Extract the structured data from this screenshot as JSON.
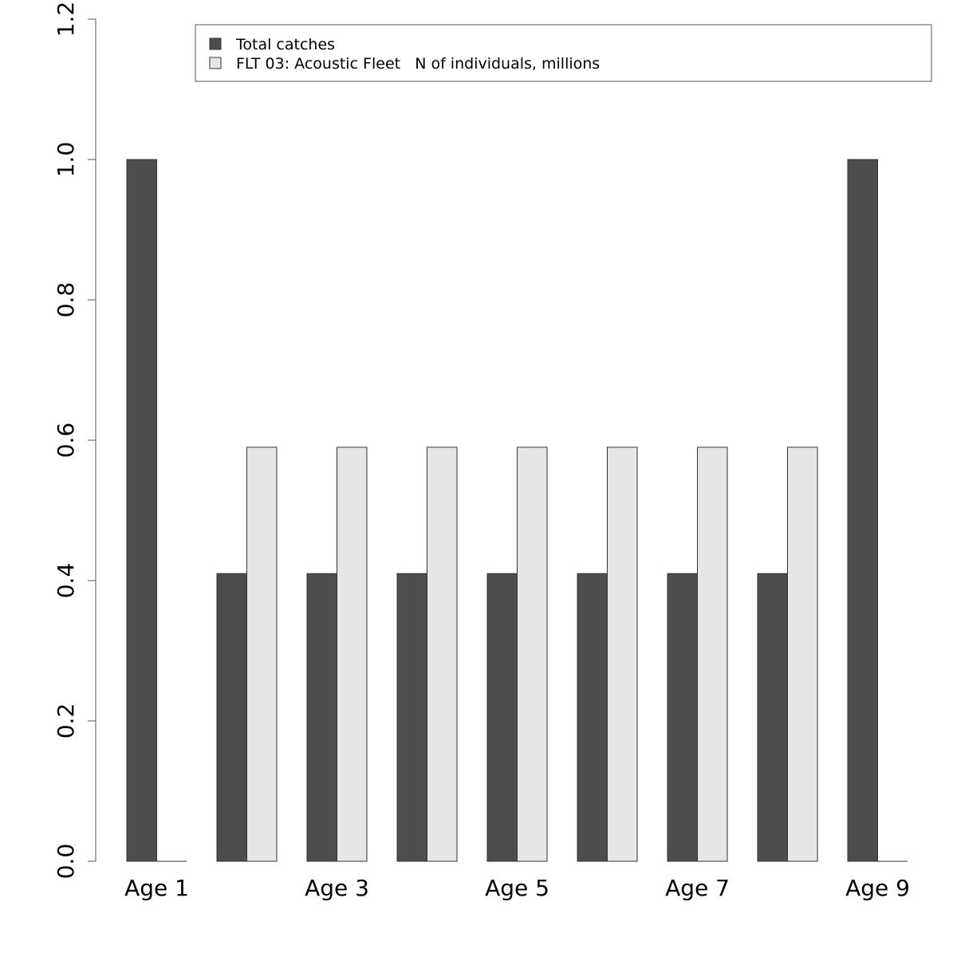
{
  "chart_data": {
    "type": "bar",
    "categories": [
      "Age 1",
      "Age 2",
      "Age 3",
      "Age 4",
      "Age 5",
      "Age 6",
      "Age 7",
      "Age 8",
      "Age 9"
    ],
    "x_tick_labels": [
      "Age 1",
      "",
      "Age 3",
      "",
      "Age 5",
      "",
      "Age 7",
      "",
      "Age 9"
    ],
    "series": [
      {
        "name": "Total catches",
        "color": "#4d4d4d",
        "values": [
          1.0,
          0.41,
          0.41,
          0.41,
          0.41,
          0.41,
          0.41,
          0.41,
          1.0
        ]
      },
      {
        "name": "FLT 03: Acoustic Fleet   N of individuals, millions",
        "color": "#e6e6e6",
        "values": [
          0.0,
          0.59,
          0.59,
          0.59,
          0.59,
          0.59,
          0.59,
          0.59,
          0.0
        ]
      }
    ],
    "ylim": [
      0,
      1.2
    ],
    "y_ticks": [
      "0.0",
      "0.2",
      "0.4",
      "0.6",
      "0.8",
      "1.0",
      "1.2"
    ],
    "grid": false,
    "legend_position": "top",
    "title": "",
    "xlabel": "",
    "ylabel": ""
  }
}
